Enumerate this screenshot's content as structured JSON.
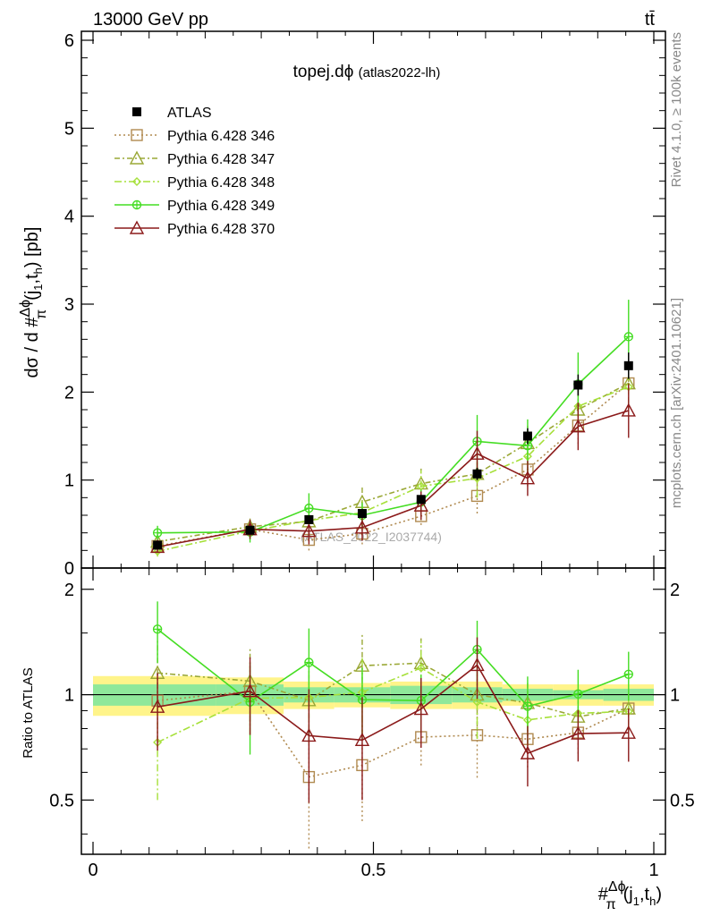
{
  "header": {
    "left": "13000 GeV pp",
    "right": "tt̄"
  },
  "side_labels": {
    "rivet": "Rivet 4.1.0, ≥ 100k events",
    "mcplots": "mcplots.cern.ch [arXiv:2401.10621]"
  },
  "chart_data": {
    "type": "line",
    "title": "topej.dϕ",
    "title_suffix": "(atlas2022-lh)",
    "watermark": "(ATLAS_2022_I2037744)",
    "ylabel": "dσ / d #Δϕ/π(j1,th) [pb]",
    "ylabel_parts": {
      "left": "dσ / d #",
      "frac_num": "Δϕ",
      "frac_den": "π",
      "paren": "(j",
      "sub1": "1",
      "comma": ",t",
      "sub2": "h",
      "tail": ") [pb]"
    },
    "xlabel_parts": {
      "hash": "#",
      "frac_num": "Δϕ",
      "frac_den": "π",
      "paren": "(j",
      "sub1": "1",
      "comma": ",t",
      "sub2": "h",
      "tail": ")"
    },
    "ratio_ylabel": "Ratio to ATLAS",
    "xlim": [
      0,
      1
    ],
    "ylim": [
      0,
      6
    ],
    "ratio_ylim": [
      0.35,
      2.3
    ],
    "x_ticks": [
      "0",
      "0.5",
      "1"
    ],
    "x_tick_values": [
      0,
      0.5,
      1
    ],
    "y_ticks": [
      "0",
      "1",
      "2",
      "3",
      "4",
      "5",
      "6"
    ],
    "y_tick_values": [
      0,
      1,
      2,
      3,
      4,
      5,
      6
    ],
    "ratio_ticks": [
      "0.5",
      "1",
      "2"
    ],
    "ratio_tick_values": [
      0.5,
      1,
      2
    ],
    "bins": [
      0.0,
      0.22,
      0.34,
      0.43,
      0.53,
      0.64,
      0.73,
      0.82,
      0.91,
      1.0
    ],
    "x": [
      0.115,
      0.28,
      0.385,
      0.48,
      0.585,
      0.685,
      0.775,
      0.865,
      0.955
    ],
    "data": {
      "name": "ATLAS",
      "values": [
        0.26,
        0.43,
        0.55,
        0.62,
        0.78,
        1.07,
        1.5,
        2.08,
        2.3
      ],
      "errors": [
        0.03,
        0.04,
        0.04,
        0.05,
        0.05,
        0.07,
        0.09,
        0.12,
        0.15
      ]
    },
    "band_inner": [
      0.07,
      0.07,
      0.05,
      0.05,
      0.06,
      0.05,
      0.04,
      0.03,
      0.04
    ],
    "band_outer": [
      0.13,
      0.12,
      0.09,
      0.08,
      0.09,
      0.09,
      0.07,
      0.07,
      0.07
    ],
    "series": [
      {
        "name": "Pythia 6.428 346",
        "color": "#b08a50",
        "dash": "2,3",
        "marker": "square",
        "values": [
          0.25,
          0.44,
          0.32,
          0.39,
          0.59,
          0.82,
          1.12,
          1.62,
          2.1
        ],
        "errors": [
          0.06,
          0.09,
          0.12,
          0.12,
          0.1,
          0.2,
          0.19,
          0.21,
          0.23
        ]
      },
      {
        "name": "Pythia 6.428 347",
        "color": "#9aa836",
        "dash": "6,3,2,3",
        "marker": "triangle",
        "values": [
          0.3,
          0.47,
          0.53,
          0.75,
          0.96,
          1.07,
          1.42,
          1.8,
          2.1
        ],
        "errors": [
          0.07,
          0.11,
          0.13,
          0.18,
          0.17,
          0.27,
          0.2,
          0.22,
          0.22
        ]
      },
      {
        "name": "Pythia 6.428 348",
        "color": "#a6e03a",
        "dash": "8,3,2,3",
        "marker": "diamond",
        "values": [
          0.19,
          0.42,
          0.54,
          0.63,
          0.93,
          1.02,
          1.27,
          1.84,
          2.06
        ],
        "errors": [
          0.06,
          0.09,
          0.12,
          0.16,
          0.18,
          0.22,
          0.2,
          0.22,
          0.25
        ]
      },
      {
        "name": "Pythia 6.428 349",
        "color": "#44dd22",
        "dash": "",
        "marker": "cross",
        "values": [
          0.4,
          0.41,
          0.68,
          0.6,
          0.75,
          1.44,
          1.39,
          2.09,
          2.63
        ],
        "errors": [
          0.08,
          0.12,
          0.17,
          0.14,
          0.14,
          0.3,
          0.3,
          0.36,
          0.42
        ]
      },
      {
        "name": "Pythia 6.428 370",
        "color": "#8b1a1a",
        "dash": "",
        "marker": "triangle",
        "values": [
          0.24,
          0.44,
          0.42,
          0.46,
          0.71,
          1.3,
          1.02,
          1.61,
          1.79
        ],
        "errors": [
          0.06,
          0.11,
          0.15,
          0.15,
          0.16,
          0.26,
          0.2,
          0.27,
          0.31
        ]
      }
    ]
  }
}
